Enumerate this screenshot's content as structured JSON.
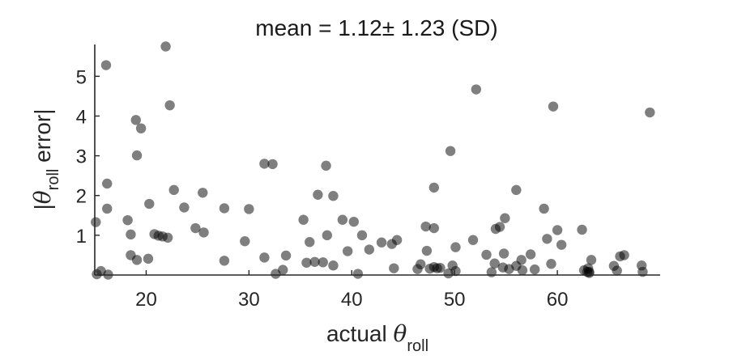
{
  "chart_data": {
    "type": "scatter",
    "title": "mean = 1.12± 1.23 (SD)",
    "xlabel": {
      "prefix": "actual ",
      "symbol": "θ",
      "subscript": "roll"
    },
    "ylabel": {
      "prefix": "|",
      "symbol": "θ",
      "subscript": "roll",
      "suffix": " error|"
    },
    "xlim": [
      15,
      70
    ],
    "ylim": [
      0,
      5.8
    ],
    "xticks": [
      20,
      30,
      40,
      50,
      60
    ],
    "yticks": [
      1,
      2,
      3,
      4,
      5
    ],
    "grid": false,
    "marker_color": "#000000",
    "marker_opacity": 0.5,
    "points": [
      [
        15.1,
        1.33
      ],
      [
        15.2,
        0.02
      ],
      [
        15.6,
        0.1
      ],
      [
        16.1,
        5.28
      ],
      [
        16.2,
        2.3
      ],
      [
        16.2,
        1.67
      ],
      [
        16.3,
        0.01
      ],
      [
        18.2,
        1.38
      ],
      [
        18.5,
        1.02
      ],
      [
        18.5,
        0.5
      ],
      [
        19.0,
        3.9
      ],
      [
        19.1,
        3.01
      ],
      [
        19.1,
        0.38
      ],
      [
        19.5,
        3.69
      ],
      [
        20.2,
        0.41
      ],
      [
        20.3,
        1.79
      ],
      [
        20.8,
        1.03
      ],
      [
        21.2,
        0.99
      ],
      [
        21.6,
        0.97
      ],
      [
        21.9,
        5.75
      ],
      [
        22.1,
        0.94
      ],
      [
        22.3,
        4.27
      ],
      [
        22.7,
        2.14
      ],
      [
        23.7,
        1.7
      ],
      [
        24.8,
        1.18
      ],
      [
        25.5,
        2.07
      ],
      [
        25.6,
        1.07
      ],
      [
        27.6,
        1.68
      ],
      [
        27.6,
        0.36
      ],
      [
        29.6,
        0.85
      ],
      [
        30.0,
        1.66
      ],
      [
        31.5,
        2.8
      ],
      [
        31.5,
        0.44
      ],
      [
        32.3,
        2.79
      ],
      [
        32.6,
        0.03
      ],
      [
        33.3,
        0.13
      ],
      [
        33.6,
        0.49
      ],
      [
        35.3,
        1.39
      ],
      [
        35.6,
        0.31
      ],
      [
        35.9,
        0.83
      ],
      [
        36.4,
        0.33
      ],
      [
        36.7,
        2.02
      ],
      [
        37.2,
        0.32
      ],
      [
        37.5,
        2.75
      ],
      [
        37.6,
        1.0
      ],
      [
        38.2,
        1.99
      ],
      [
        38.2,
        0.24
      ],
      [
        39.1,
        1.39
      ],
      [
        39.6,
        0.6
      ],
      [
        40.2,
        1.34
      ],
      [
        40.6,
        0.03
      ],
      [
        41.0,
        1.0
      ],
      [
        41.7,
        0.64
      ],
      [
        42.9,
        0.82
      ],
      [
        43.9,
        0.78
      ],
      [
        44.1,
        0.17
      ],
      [
        44.4,
        0.88
      ],
      [
        46.4,
        0.15
      ],
      [
        46.7,
        0.27
      ],
      [
        47.2,
        1.22
      ],
      [
        47.3,
        0.61
      ],
      [
        47.6,
        0.16
      ],
      [
        48.0,
        0.2
      ],
      [
        48.0,
        1.18
      ],
      [
        48.0,
        2.2
      ],
      [
        48.3,
        0.17
      ],
      [
        48.6,
        0.18
      ],
      [
        49.4,
        0.04
      ],
      [
        49.6,
        3.12
      ],
      [
        49.8,
        0.24
      ],
      [
        50.1,
        0.7
      ],
      [
        50.1,
        0.1
      ],
      [
        51.8,
        0.88
      ],
      [
        52.1,
        4.67
      ],
      [
        53.1,
        0.51
      ],
      [
        53.6,
        0.07
      ],
      [
        53.9,
        0.29
      ],
      [
        54.0,
        1.16
      ],
      [
        54.4,
        1.21
      ],
      [
        54.7,
        0.19
      ],
      [
        54.8,
        0.54
      ],
      [
        54.9,
        1.43
      ],
      [
        55.3,
        0.15
      ],
      [
        56.0,
        2.14
      ],
      [
        56.0,
        0.23
      ],
      [
        56.5,
        0.38
      ],
      [
        56.6,
        0.12
      ],
      [
        57.4,
        0.52
      ],
      [
        57.8,
        0.14
      ],
      [
        58.7,
        1.67
      ],
      [
        59.0,
        0.91
      ],
      [
        59.4,
        0.28
      ],
      [
        59.6,
        4.24
      ],
      [
        60.0,
        1.13
      ],
      [
        60.4,
        0.76
      ],
      [
        62.4,
        1.14
      ],
      [
        62.6,
        0.12
      ],
      [
        62.9,
        0.08
      ],
      [
        63.0,
        0.17
      ],
      [
        63.1,
        0.05
      ],
      [
        63.1,
        0.08
      ],
      [
        63.3,
        0.38
      ],
      [
        65.5,
        0.23
      ],
      [
        65.8,
        0.11
      ],
      [
        66.1,
        0.47
      ],
      [
        66.5,
        0.5
      ],
      [
        68.2,
        0.24
      ],
      [
        68.3,
        0.08
      ],
      [
        69.0,
        4.09
      ]
    ]
  }
}
